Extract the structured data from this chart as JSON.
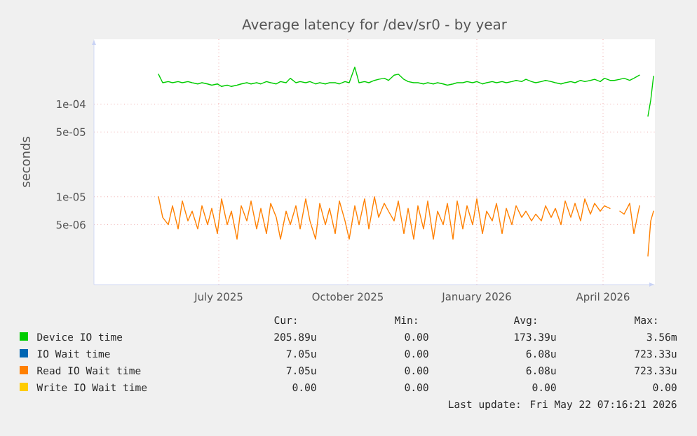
{
  "chart_data": {
    "type": "line",
    "title": "Average latency for /dev/sr0 - by year",
    "ylabel": "seconds",
    "log": "y",
    "grid": true,
    "legend": "bottom",
    "line_style": "solid",
    "ylim": [
      1.13e-06,
      0.0005
    ],
    "yticks": [
      {
        "value": 0.0001,
        "label": "1e-04"
      },
      {
        "value": 5e-05,
        "label": "5e-05"
      },
      {
        "value": 1e-05,
        "label": "1e-05"
      },
      {
        "value": 5e-06,
        "label": "5e-06"
      }
    ],
    "xlim": [
      "2025-04-17",
      "2026-05-22"
    ],
    "xticks": [
      {
        "value": "2025-07-15",
        "label": "July 2025"
      },
      {
        "value": "2025-10-15",
        "label": "October 2025"
      },
      {
        "value": "2026-01-15",
        "label": "January 2026"
      },
      {
        "value": "2026-04-15",
        "label": "April 2026"
      }
    ],
    "x": [
      "2025-06-02",
      "2025-06-05",
      "2025-06-09",
      "2025-06-12",
      "2025-06-16",
      "2025-06-19",
      "2025-06-23",
      "2025-06-26",
      "2025-06-30",
      "2025-07-03",
      "2025-07-07",
      "2025-07-10",
      "2025-07-14",
      "2025-07-17",
      "2025-07-21",
      "2025-07-24",
      "2025-07-28",
      "2025-07-31",
      "2025-08-04",
      "2025-08-07",
      "2025-08-11",
      "2025-08-14",
      "2025-08-18",
      "2025-08-21",
      "2025-08-25",
      "2025-08-28",
      "2025-09-01",
      "2025-09-04",
      "2025-09-08",
      "2025-09-11",
      "2025-09-15",
      "2025-09-18",
      "2025-09-22",
      "2025-09-25",
      "2025-09-29",
      "2025-10-02",
      "2025-10-06",
      "2025-10-09",
      "2025-10-13",
      "2025-10-16",
      "2025-10-20",
      "2025-10-23",
      "2025-10-27",
      "2025-10-30",
      "2025-11-03",
      "2025-11-06",
      "2025-11-10",
      "2025-11-13",
      "2025-11-17",
      "2025-11-20",
      "2025-11-24",
      "2025-11-27",
      "2025-12-01",
      "2025-12-04",
      "2025-12-08",
      "2025-12-11",
      "2025-12-15",
      "2025-12-18",
      "2025-12-22",
      "2025-12-25",
      "2025-12-29",
      "2026-01-01",
      "2026-01-05",
      "2026-01-08",
      "2026-01-12",
      "2026-01-15",
      "2026-01-19",
      "2026-01-22",
      "2026-01-26",
      "2026-01-29",
      "2026-02-02",
      "2026-02-05",
      "2026-02-09",
      "2026-02-12",
      "2026-02-16",
      "2026-02-19",
      "2026-02-23",
      "2026-02-26",
      "2026-03-02",
      "2026-03-05",
      "2026-03-09",
      "2026-03-12",
      "2026-03-16",
      "2026-03-19",
      "2026-03-23",
      "2026-03-26",
      "2026-03-30",
      "2026-04-02",
      "2026-04-06",
      "2026-04-09",
      "2026-04-13",
      "2026-04-16",
      "2026-04-20",
      "2026-04-23",
      "2026-04-27",
      "2026-04-30",
      "2026-05-04",
      "2026-05-07",
      "2026-05-11",
      "2026-05-14",
      "2026-05-17",
      "2026-05-19",
      "2026-05-21"
    ],
    "series": [
      {
        "name": "Device IO time",
        "color": "#00cc00",
        "values": [
          0.00021,
          0.00017,
          0.000175,
          0.00017,
          0.000175,
          0.00017,
          0.000175,
          0.00017,
          0.000165,
          0.00017,
          0.000165,
          0.00016,
          0.000165,
          0.000155,
          0.00016,
          0.000155,
          0.00016,
          0.000165,
          0.00017,
          0.000165,
          0.00017,
          0.000165,
          0.000175,
          0.00017,
          0.000165,
          0.000175,
          0.00017,
          0.00019,
          0.00017,
          0.000175,
          0.00017,
          0.000175,
          0.000165,
          0.00017,
          0.000165,
          0.00017,
          0.00017,
          0.000165,
          0.000175,
          0.00017,
          0.00025,
          0.00017,
          0.000175,
          0.00017,
          0.00018,
          0.000185,
          0.00019,
          0.00018,
          0.000205,
          0.00021,
          0.000185,
          0.000175,
          0.00017,
          0.00017,
          0.000165,
          0.00017,
          0.000165,
          0.00017,
          0.000165,
          0.00016,
          0.000165,
          0.00017,
          0.00017,
          0.000175,
          0.00017,
          0.000175,
          0.000165,
          0.00017,
          0.000175,
          0.00017,
          0.000175,
          0.00017,
          0.000175,
          0.00018,
          0.000175,
          0.000185,
          0.000175,
          0.00017,
          0.000175,
          0.00018,
          0.000175,
          0.00017,
          0.000165,
          0.00017,
          0.000175,
          0.00017,
          0.00018,
          0.000175,
          0.00018,
          0.000185,
          0.000175,
          0.00019,
          0.00018,
          0.00018,
          0.000185,
          0.00019,
          0.00018,
          0.00019,
          0.000205,
          null,
          7.4e-05,
          0.00011,
          0.0002
        ]
      },
      {
        "name": "IO Wait time",
        "color": "#0066b3",
        "values": [
          null,
          null,
          null,
          null,
          null,
          null,
          null,
          null,
          null,
          null,
          null,
          null,
          null,
          null,
          null,
          null,
          null,
          null,
          null,
          null,
          null,
          null,
          null,
          null,
          null,
          null,
          null,
          null,
          null,
          null,
          null,
          null,
          null,
          null,
          null,
          null,
          null,
          null,
          null,
          null,
          null,
          null,
          null,
          null,
          null,
          null,
          null,
          null,
          null,
          null,
          null,
          null,
          null,
          null,
          null,
          null,
          null,
          null,
          null,
          null,
          null,
          null,
          null,
          null,
          null,
          null,
          null,
          null,
          null,
          null,
          null,
          null,
          null,
          null,
          null,
          null,
          null,
          null,
          null,
          null,
          null,
          null,
          null,
          null,
          null,
          null,
          null,
          null,
          null,
          null,
          null,
          null,
          null,
          null,
          null,
          null,
          null,
          null,
          null,
          null,
          null,
          null,
          null
        ]
      },
      {
        "name": "Read IO Wait time",
        "color": "#ff8000",
        "values": [
          1e-05,
          6e-06,
          5e-06,
          8e-06,
          4.5e-06,
          9e-06,
          5.5e-06,
          7e-06,
          4.5e-06,
          8e-06,
          5e-06,
          7.5e-06,
          4e-06,
          9.5e-06,
          5e-06,
          7e-06,
          3.5e-06,
          8e-06,
          5.5e-06,
          9e-06,
          4.5e-06,
          7.5e-06,
          4e-06,
          8.5e-06,
          6e-06,
          3.5e-06,
          7e-06,
          5e-06,
          8e-06,
          4.5e-06,
          9.5e-06,
          5.5e-06,
          3.5e-06,
          8.5e-06,
          5e-06,
          7.5e-06,
          4e-06,
          9e-06,
          5.5e-06,
          3.5e-06,
          8e-06,
          5e-06,
          9.5e-06,
          4.5e-06,
          1e-05,
          6e-06,
          8.5e-06,
          7e-06,
          5.5e-06,
          9e-06,
          4e-06,
          7.5e-06,
          3.5e-06,
          8e-06,
          4.5e-06,
          9e-06,
          3.5e-06,
          7e-06,
          5e-06,
          8.5e-06,
          3.5e-06,
          9e-06,
          4.5e-06,
          8e-06,
          5e-06,
          9.5e-06,
          4e-06,
          7e-06,
          5.5e-06,
          8.5e-06,
          4e-06,
          7.5e-06,
          5e-06,
          8e-06,
          6e-06,
          7e-06,
          5.5e-06,
          6.5e-06,
          5.5e-06,
          8e-06,
          6e-06,
          7.5e-06,
          5e-06,
          9e-06,
          6e-06,
          8.5e-06,
          5.5e-06,
          9.5e-06,
          6.5e-06,
          8.5e-06,
          7e-06,
          8e-06,
          7.5e-06,
          null,
          7e-06,
          6.5e-06,
          8.5e-06,
          4e-06,
          8e-06,
          null,
          2.3e-06,
          5.5e-06,
          7e-06
        ]
      },
      {
        "name": "Write IO Wait time",
        "color": "#ffcc00",
        "values": [
          null,
          null,
          null,
          null,
          null,
          null,
          null,
          null,
          null,
          null,
          null,
          null,
          null,
          null,
          null,
          null,
          null,
          null,
          null,
          null,
          null,
          null,
          null,
          null,
          null,
          null,
          null,
          null,
          null,
          null,
          null,
          null,
          null,
          null,
          null,
          null,
          null,
          null,
          null,
          null,
          null,
          null,
          null,
          null,
          null,
          null,
          null,
          null,
          null,
          null,
          null,
          null,
          null,
          null,
          null,
          null,
          null,
          null,
          null,
          null,
          null,
          null,
          null,
          null,
          null,
          null,
          null,
          null,
          null,
          null,
          null,
          null,
          null,
          null,
          null,
          null,
          null,
          null,
          null,
          null,
          null,
          null,
          null,
          null,
          null,
          null,
          null,
          null,
          null,
          null,
          null,
          null,
          null,
          null,
          null,
          null,
          null,
          null,
          null,
          null,
          null,
          null,
          null
        ]
      }
    ],
    "annotations": [
      "Cur:",
      "Min:",
      "Avg:",
      "Max:",
      "205.89u",
      "0.00",
      "173.39u",
      "3.56m",
      "7.05u",
      "0.00",
      "6.08u",
      "723.33u",
      "7.05u",
      "0.00",
      "6.08u",
      "723.33u",
      "0.00",
      "0.00",
      "0.00",
      "0.00",
      "Last update: Fri May 22 07:16:21 2026"
    ]
  }
}
